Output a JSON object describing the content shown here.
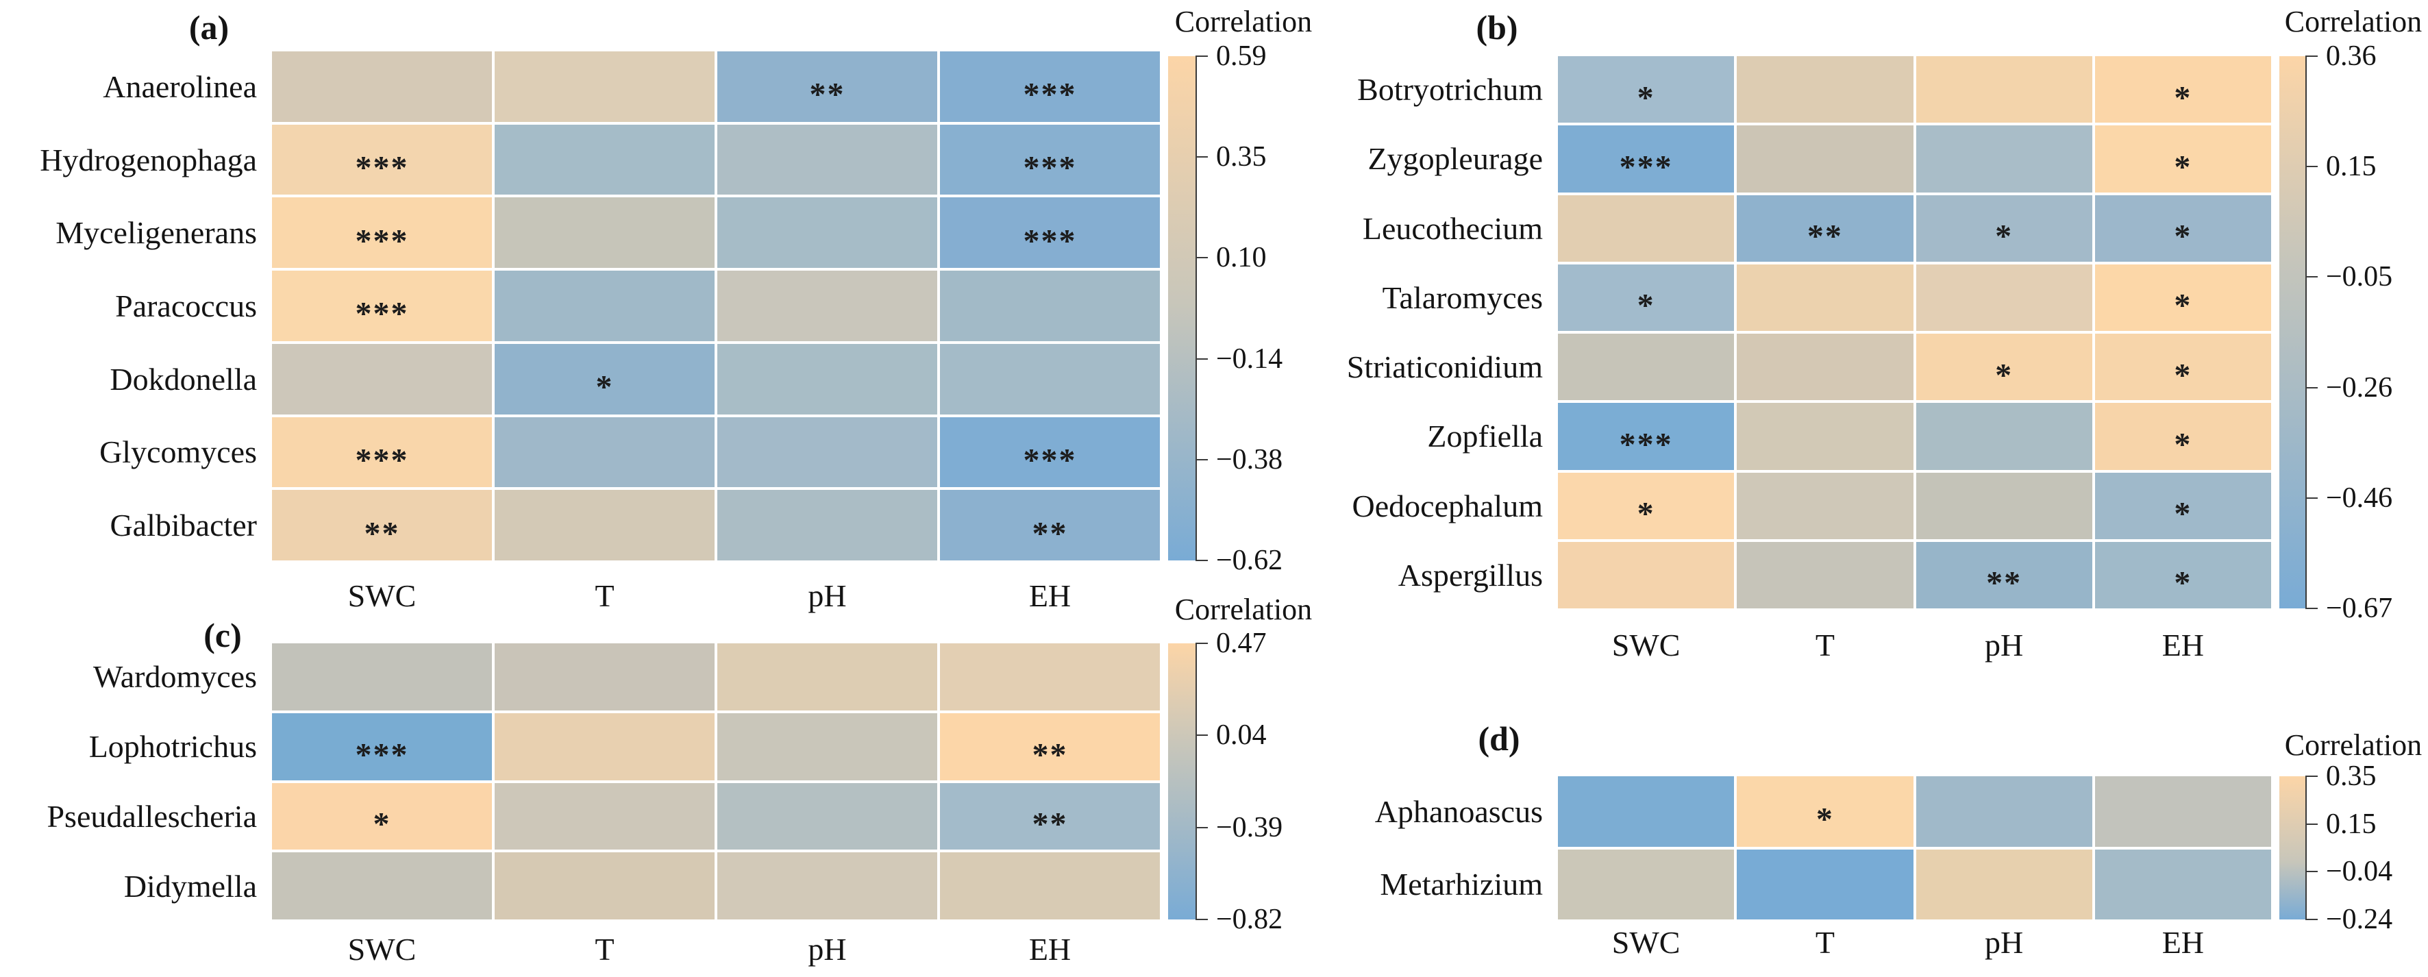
{
  "figure": {
    "background": "#ffffff",
    "legend_gradient": {
      "top_color": "#fcd5a7",
      "zero_color": "#c8c6ba",
      "bottom_color": "#79abd5"
    }
  },
  "panels": [
    {
      "id": "a",
      "label": "(a)",
      "columns": [
        "SWC",
        "T",
        "pH",
        "EH"
      ],
      "rows": [
        "Anaerolinea",
        "Hydrogenophaga",
        "Myceligenerans",
        "Paracoccus",
        "Dokdonella",
        "Glycomyces",
        "Galbibacter"
      ],
      "cells": [
        [
          {
            "color": "#d5c9b6",
            "stars": ""
          },
          {
            "color": "#ddceb6",
            "stars": ""
          },
          {
            "color": "#90b2cd",
            "stars": "**"
          },
          {
            "color": "#84aed1",
            "stars": "***"
          }
        ],
        [
          {
            "color": "#f3d5ae",
            "stars": "***"
          },
          {
            "color": "#a5bcc8",
            "stars": ""
          },
          {
            "color": "#aebec5",
            "stars": ""
          },
          {
            "color": "#88b0d0",
            "stars": "***"
          }
        ],
        [
          {
            "color": "#fad7aa",
            "stars": "***"
          },
          {
            "color": "#c6c5b9",
            "stars": ""
          },
          {
            "color": "#a6bcc7",
            "stars": ""
          },
          {
            "color": "#85aed1",
            "stars": "***"
          }
        ],
        [
          {
            "color": "#fad8ab",
            "stars": "***"
          },
          {
            "color": "#a0b9c8",
            "stars": ""
          },
          {
            "color": "#c9c6bb",
            "stars": ""
          },
          {
            "color": "#a2bac7",
            "stars": ""
          }
        ],
        [
          {
            "color": "#cdc7ba",
            "stars": ""
          },
          {
            "color": "#91b3cc",
            "stars": "*"
          },
          {
            "color": "#a8bdc6",
            "stars": ""
          },
          {
            "color": "#a4bbc8",
            "stars": ""
          }
        ],
        [
          {
            "color": "#f9d6aa",
            "stars": "***"
          },
          {
            "color": "#9fb8c9",
            "stars": ""
          },
          {
            "color": "#a3bac9",
            "stars": ""
          },
          {
            "color": "#7fadd3",
            "stars": "***"
          }
        ],
        [
          {
            "color": "#eed2ae",
            "stars": "**"
          },
          {
            "color": "#d3c9b6",
            "stars": ""
          },
          {
            "color": "#abbdc5",
            "stars": ""
          },
          {
            "color": "#8cb1cf",
            "stars": "**"
          }
        ]
      ],
      "legend": {
        "title": "Correlation",
        "tick_labels": [
          "0.59",
          "0.35",
          "0.10",
          "−0.14",
          "−0.38",
          "−0.62"
        ],
        "max": 0.59,
        "min": -0.62
      }
    },
    {
      "id": "b",
      "label": "(b)",
      "columns": [
        "SWC",
        "T",
        "pH",
        "EH"
      ],
      "rows": [
        "Botryotrichum",
        "Zygopleurage",
        "Leucothecium",
        "Talaromyces",
        "Striaticonidium",
        "Zopfiella",
        "Oedocephalum",
        "Aspergillus"
      ],
      "cells": [
        [
          {
            "color": "#a3bccd",
            "stars": "*"
          },
          {
            "color": "#ddccb2",
            "stars": ""
          },
          {
            "color": "#f3d4ab",
            "stars": ""
          },
          {
            "color": "#fbd6a8",
            "stars": "*"
          }
        ],
        [
          {
            "color": "#7eadd3",
            "stars": "***"
          },
          {
            "color": "#ccc5b5",
            "stars": ""
          },
          {
            "color": "#a9bdc8",
            "stars": ""
          },
          {
            "color": "#fbd7a9",
            "stars": "*"
          }
        ],
        [
          {
            "color": "#e2ceb1",
            "stars": ""
          },
          {
            "color": "#8fb2cd",
            "stars": "**"
          },
          {
            "color": "#a3bac9",
            "stars": "*"
          },
          {
            "color": "#9cb7cb",
            "stars": "*"
          }
        ],
        [
          {
            "color": "#a2bbcc",
            "stars": "*"
          },
          {
            "color": "#ecd2ae",
            "stars": ""
          },
          {
            "color": "#e3cfb4",
            "stars": ""
          },
          {
            "color": "#fcd7a8",
            "stars": "*"
          }
        ],
        [
          {
            "color": "#c6c4b8",
            "stars": ""
          },
          {
            "color": "#d4c8b4",
            "stars": ""
          },
          {
            "color": "#f7d5aa",
            "stars": "*"
          },
          {
            "color": "#f7d5aa",
            "stars": "*"
          }
        ],
        [
          {
            "color": "#7badd4",
            "stars": "***"
          },
          {
            "color": "#d2c9b6",
            "stars": ""
          },
          {
            "color": "#aabdc5",
            "stars": ""
          },
          {
            "color": "#f7d4a9",
            "stars": "*"
          }
        ],
        [
          {
            "color": "#fbd7ab",
            "stars": "*"
          },
          {
            "color": "#cfc8b8",
            "stars": ""
          },
          {
            "color": "#c4c3b8",
            "stars": ""
          },
          {
            "color": "#9fb9ca",
            "stars": "*"
          }
        ],
        [
          {
            "color": "#f4d3ac",
            "stars": ""
          },
          {
            "color": "#c6c4b9",
            "stars": ""
          },
          {
            "color": "#97b5c9",
            "stars": "**"
          },
          {
            "color": "#a0bac9",
            "stars": "*"
          }
        ]
      ],
      "legend": {
        "title": "Correlation",
        "tick_labels": [
          "0.36",
          "0.15",
          "−0.05",
          "−0.26",
          "−0.46",
          "−0.67"
        ],
        "max": 0.36,
        "min": -0.67
      }
    },
    {
      "id": "c",
      "label": "(c)",
      "columns": [
        "SWC",
        "T",
        "pH",
        "EH"
      ],
      "rows": [
        "Wardomyces",
        "Lophotrichus",
        "Pseudallescheria",
        "Didymella"
      ],
      "cells": [
        [
          {
            "color": "#c2c2ba",
            "stars": ""
          },
          {
            "color": "#c9c4b8",
            "stars": ""
          },
          {
            "color": "#ddcdb3",
            "stars": ""
          },
          {
            "color": "#e3cfb3",
            "stars": ""
          }
        ],
        [
          {
            "color": "#79acd2",
            "stars": "***"
          },
          {
            "color": "#e8d0b0",
            "stars": ""
          },
          {
            "color": "#c9c6ba",
            "stars": ""
          },
          {
            "color": "#fcd6a8",
            "stars": "**"
          }
        ],
        [
          {
            "color": "#fbd5a9",
            "stars": "*"
          },
          {
            "color": "#cdc7b9",
            "stars": ""
          },
          {
            "color": "#b4c0c2",
            "stars": ""
          },
          {
            "color": "#a3bbca",
            "stars": "**"
          }
        ],
        [
          {
            "color": "#c6c4b9",
            "stars": ""
          },
          {
            "color": "#d6c9b3",
            "stars": ""
          },
          {
            "color": "#d2c9b8",
            "stars": ""
          },
          {
            "color": "#d8cbb4",
            "stars": ""
          }
        ]
      ],
      "legend": {
        "title": "Correlation",
        "tick_labels": [
          "0.47",
          "0.04",
          "−0.39",
          "−0.82"
        ],
        "max": 0.47,
        "min": -0.82
      }
    },
    {
      "id": "d",
      "label": "(d)",
      "columns": [
        "SWC",
        "T",
        "pH",
        "EH"
      ],
      "rows": [
        "Aphanoascus",
        "Metarhizium"
      ],
      "cells": [
        [
          {
            "color": "#7cadd3",
            "stars": ""
          },
          {
            "color": "#fbd7a9",
            "stars": "*"
          },
          {
            "color": "#a0b9c9",
            "stars": ""
          },
          {
            "color": "#c2c3bc",
            "stars": ""
          }
        ],
        [
          {
            "color": "#cbc7b8",
            "stars": ""
          },
          {
            "color": "#78abd5",
            "stars": ""
          },
          {
            "color": "#e7d0ae",
            "stars": ""
          },
          {
            "color": "#a4bbc8",
            "stars": ""
          }
        ]
      ],
      "legend": {
        "title": "Correlation",
        "tick_labels": [
          "0.35",
          "0.15",
          "−0.04",
          "−0.24"
        ],
        "max": 0.35,
        "min": -0.24
      }
    }
  ],
  "chart_data": [
    {
      "type": "heatmap",
      "panel": "(a)",
      "x": [
        "SWC",
        "T",
        "pH",
        "EH"
      ],
      "y": [
        "Anaerolinea",
        "Hydrogenophaga",
        "Myceligenerans",
        "Paracoccus",
        "Dokdonella",
        "Glycomyces",
        "Galbibacter"
      ],
      "values_estimated": [
        [
          0.12,
          0.15,
          -0.35,
          -0.45
        ],
        [
          0.38,
          -0.18,
          -0.12,
          -0.42
        ],
        [
          0.48,
          0.02,
          -0.17,
          -0.45
        ],
        [
          0.48,
          -0.22,
          0.05,
          -0.2
        ],
        [
          0.05,
          -0.32,
          -0.15,
          -0.18
        ],
        [
          0.45,
          -0.22,
          -0.2,
          -0.5
        ],
        [
          0.3,
          0.08,
          -0.12,
          -0.38
        ]
      ],
      "significance": [
        [
          "",
          "",
          "**",
          "***"
        ],
        [
          "***",
          "",
          "",
          "***"
        ],
        [
          "***",
          "",
          "",
          "***"
        ],
        [
          "***",
          "",
          "",
          ""
        ],
        [
          "",
          "*",
          "",
          ""
        ],
        [
          "***",
          "",
          "",
          "***"
        ],
        [
          "**",
          "",
          "",
          "**"
        ]
      ],
      "legend_title": "Correlation",
      "colorbar_range": [
        0.59,
        -0.62
      ],
      "colorbar_ticks": [
        0.59,
        0.35,
        0.1,
        -0.14,
        -0.38,
        -0.62
      ],
      "legend_position": "right"
    },
    {
      "type": "heatmap",
      "panel": "(b)",
      "x": [
        "SWC",
        "T",
        "pH",
        "EH"
      ],
      "y": [
        "Botryotrichum",
        "Zygopleurage",
        "Leucothecium",
        "Talaromyces",
        "Striaticonidium",
        "Zopfiella",
        "Oedocephalum",
        "Aspergillus"
      ],
      "values_estimated": [
        [
          -0.25,
          0.12,
          0.22,
          0.3
        ],
        [
          -0.6,
          0.02,
          -0.15,
          0.3
        ],
        [
          0.15,
          -0.4,
          -0.22,
          -0.28
        ],
        [
          -0.26,
          0.2,
          0.15,
          0.31
        ],
        [
          -0.02,
          0.08,
          0.26,
          0.26
        ],
        [
          -0.62,
          0.05,
          -0.14,
          0.26
        ],
        [
          0.3,
          0.04,
          -0.01,
          -0.3
        ],
        [
          0.22,
          -0.02,
          -0.35,
          -0.29
        ]
      ],
      "significance": [
        [
          "*",
          "",
          "",
          "*"
        ],
        [
          "***",
          "",
          "",
          "*"
        ],
        [
          "",
          "**",
          "*",
          "*"
        ],
        [
          "*",
          "",
          "",
          "*"
        ],
        [
          "",
          "",
          "*",
          "*"
        ],
        [
          "***",
          "",
          "",
          "*"
        ],
        [
          "*",
          "",
          "",
          "*"
        ],
        [
          "",
          "",
          "**",
          "*"
        ]
      ],
      "legend_title": "Correlation",
      "colorbar_range": [
        0.36,
        -0.67
      ],
      "colorbar_ticks": [
        0.36,
        0.15,
        -0.05,
        -0.26,
        -0.46,
        -0.67
      ],
      "legend_position": "right"
    },
    {
      "type": "heatmap",
      "panel": "(c)",
      "x": [
        "SWC",
        "T",
        "pH",
        "EH"
      ],
      "y": [
        "Wardomyces",
        "Lophotrichus",
        "Pseudallescheria",
        "Didymella"
      ],
      "values_estimated": [
        [
          -0.02,
          0.02,
          0.15,
          0.18
        ],
        [
          -0.75,
          0.25,
          0.03,
          0.4
        ],
        [
          0.4,
          0.05,
          -0.1,
          -0.3
        ],
        [
          0.0,
          0.12,
          0.08,
          0.12
        ]
      ],
      "significance": [
        [
          "",
          "",
          "",
          ""
        ],
        [
          "***",
          "",
          "",
          "**"
        ],
        [
          "*",
          "",
          "",
          "**"
        ],
        [
          "",
          "",
          "",
          ""
        ]
      ],
      "legend_title": "Correlation",
      "colorbar_range": [
        0.47,
        -0.82
      ],
      "colorbar_ticks": [
        0.47,
        0.04,
        -0.39,
        -0.82
      ],
      "legend_position": "right"
    },
    {
      "type": "heatmap",
      "panel": "(d)",
      "x": [
        "SWC",
        "T",
        "pH",
        "EH"
      ],
      "y": [
        "Aphanoascus",
        "Metarhizium"
      ],
      "values_estimated": [
        [
          -0.18,
          0.3,
          -0.08,
          0.05
        ],
        [
          0.1,
          -0.2,
          0.2,
          -0.06
        ]
      ],
      "significance": [
        [
          "",
          "*",
          "",
          ""
        ],
        [
          "",
          "",
          "",
          ""
        ]
      ],
      "legend_title": "Correlation",
      "colorbar_range": [
        0.35,
        -0.24
      ],
      "colorbar_ticks": [
        0.35,
        0.15,
        -0.04,
        -0.24
      ],
      "legend_position": "right"
    }
  ]
}
